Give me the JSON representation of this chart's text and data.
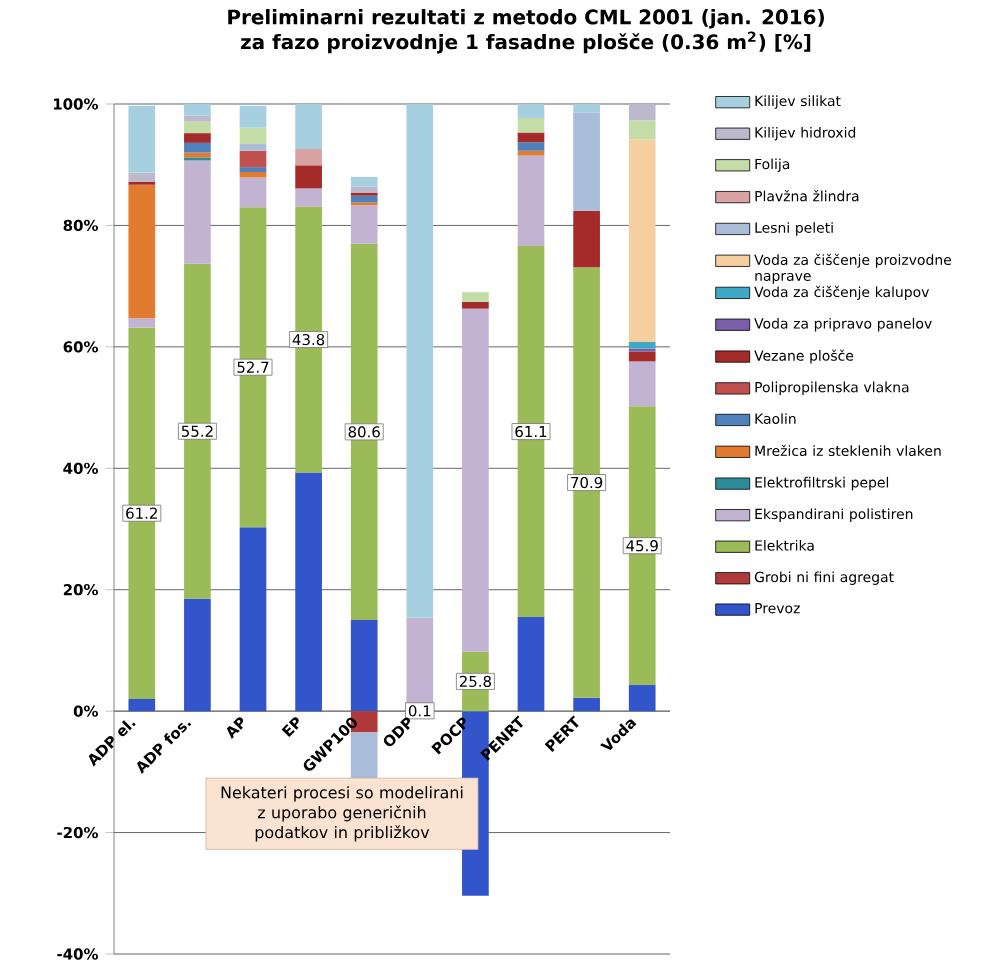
{
  "chart_data": {
    "type": "bar",
    "stacked": true,
    "title": "Preliminarni rezultati z metodo CML 2001 (jan. 2016)",
    "subtitle": "za fazo proizvodnje 1 fasadne plošče (0.36 m$^{2}$) [%]",
    "categories": [
      "ADP el.",
      "ADP fos.",
      "AP",
      "EP",
      "GWP100",
      "ODP",
      "POCP",
      "PENRT",
      "PERT",
      "Voda"
    ],
    "ylim": [
      -40,
      100
    ],
    "yticks": [
      {
        "value": -40,
        "label": "-40%"
      },
      {
        "value": -20,
        "label": "-20%"
      },
      {
        "value": 0,
        "label": "0%"
      },
      {
        "value": 20,
        "label": "20%"
      },
      {
        "value": 40,
        "label": "40%"
      },
      {
        "value": 60,
        "label": "60%"
      },
      {
        "value": 80,
        "label": "80%"
      },
      {
        "value": 100,
        "label": "100%"
      }
    ],
    "grid": "y",
    "legend": "right",
    "annotations": [
      "Nekateri procesi so modelirani z uporabo generičnih podatkov in približkov",
      {
        "text": "80.6",
        "x": "GWP100",
        "y": 46
      },
      {
        "text": "25.8",
        "x": "POCP",
        "y": 4.9
      }
    ],
    "series": [
      {
        "name": "Prevoz",
        "color": "#3355cc",
        "values": [
          2,
          18.5,
          30.3,
          39.3,
          15.0,
          null,
          -30.4,
          15.5,
          2.2,
          4.3
        ]
      },
      {
        "name": "Grobi ni fini agregat",
        "color": "#b03a3a",
        "values": [
          null,
          null,
          null,
          null,
          -3.5,
          null,
          null,
          null,
          null,
          null
        ]
      },
      {
        "name": "Elektrika",
        "color": "#9bbb59",
        "values": [
          61.2,
          55.2,
          52.7,
          43.8,
          62.0,
          0.1,
          9.8,
          61.1,
          70.9,
          45.9
        ],
        "value_labels": [
          "61.2",
          "55.2",
          "52.7",
          "43.8",
          null,
          "0.1",
          null,
          "61.1",
          "70.9",
          "45.9"
        ]
      },
      {
        "name": "Ekspandirani polistiren",
        "color": "#c3b3d3",
        "values": [
          1.5,
          17.0,
          4.9,
          3.0,
          6.3,
          15.3,
          56.5,
          14.9,
          null,
          7.4
        ]
      },
      {
        "name": "Elektrofiltrski pepel",
        "color": "#2e8b9a",
        "values": [
          null,
          0.5,
          null,
          null,
          null,
          null,
          null,
          null,
          null,
          null
        ]
      },
      {
        "name": "Mrežica iz steklenih vlaken",
        "color": "#e07b2f",
        "values": [
          22.0,
          0.8,
          0.9,
          null,
          0.5,
          null,
          null,
          0.8,
          null,
          null
        ]
      },
      {
        "name": "Kaolin",
        "color": "#4f81bd",
        "values": [
          null,
          1.6,
          0.8,
          null,
          1.1,
          null,
          null,
          1.4,
          null,
          null
        ]
      },
      {
        "name": "Polipropilenska vlakna",
        "color": "#c0504d",
        "values": [
          null,
          null,
          2.7,
          null,
          null,
          null,
          null,
          null,
          null,
          null
        ]
      },
      {
        "name": "Vezane plošče",
        "color": "#a52a2a",
        "values": [
          0.5,
          1.6,
          null,
          3.8,
          0.5,
          null,
          1.1,
          1.6,
          9.3,
          1.6
        ]
      },
      {
        "name": "Voda za pripravo panelov",
        "color": "#7a5ea8",
        "values": [
          null,
          null,
          null,
          null,
          null,
          null,
          null,
          null,
          null,
          0.5
        ]
      },
      {
        "name": "Voda za čiščenje kalupov",
        "color": "#3ea9c4",
        "values": [
          null,
          null,
          null,
          null,
          null,
          null,
          null,
          null,
          null,
          1.1
        ]
      },
      {
        "name": "Voda za čiščenje proizvodne naprave",
        "color": "#f5cfa0",
        "values": [
          null,
          null,
          null,
          null,
          null,
          null,
          null,
          null,
          null,
          33.4
        ]
      },
      {
        "name": "Lesni peleti",
        "color": "#a9bcda",
        "values": [
          null,
          null,
          1.1,
          null,
          -8.0,
          null,
          null,
          null,
          16.2,
          null
        ]
      },
      {
        "name": "Plavžna žlindra",
        "color": "#d9a3a3",
        "values": [
          null,
          null,
          null,
          2.7,
          null,
          null,
          null,
          null,
          null,
          null
        ]
      },
      {
        "name": "Folija",
        "color": "#c3dca8",
        "values": [
          null,
          1.9,
          2.7,
          null,
          null,
          null,
          1.6,
          2.4,
          null,
          3.1
        ]
      },
      {
        "name": "Kilijev hidroxid",
        "color": "#bdb9cc",
        "values": [
          1.5,
          1.0,
          null,
          null,
          1.0,
          null,
          null,
          null,
          null,
          2.7
        ]
      },
      {
        "name": "Kilijev silikat",
        "color": "#a6cfe0",
        "values": [
          11.0,
          1.9,
          3.6,
          7.4,
          1.6,
          84.6,
          null,
          2.3,
          1.4,
          null
        ]
      }
    ]
  }
}
